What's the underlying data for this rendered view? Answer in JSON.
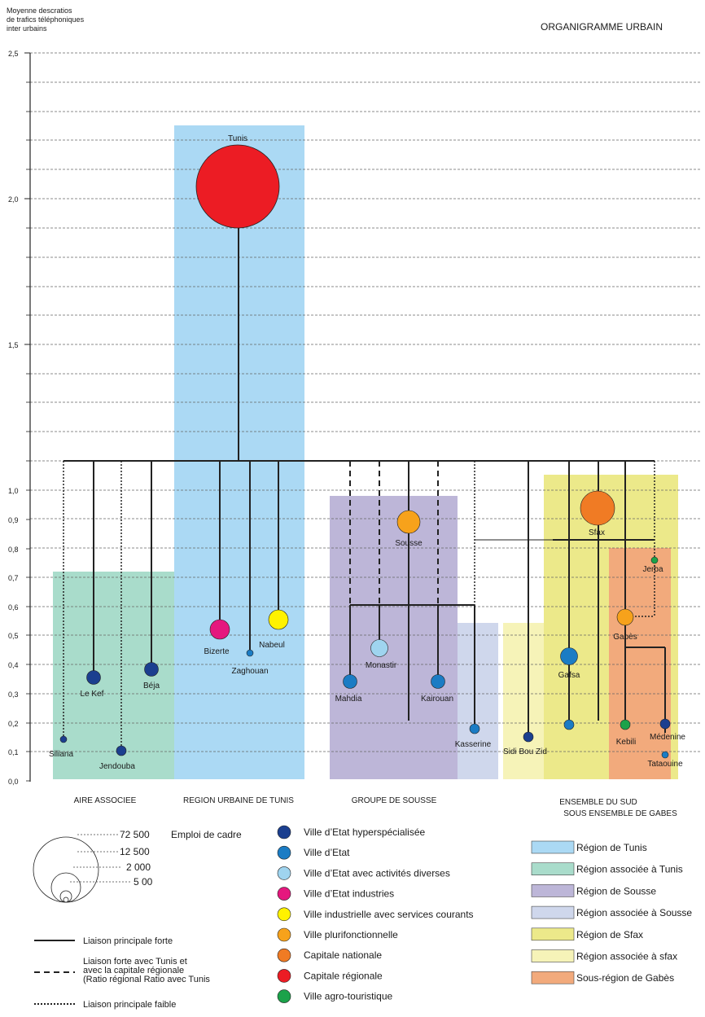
{
  "title": "ORGANIGRAMME URBAIN",
  "y_axis": {
    "label_lines": [
      "Moyenne descratios",
      "de trafics téléphoniques",
      "inter urbains"
    ],
    "ticks_major": [
      "2,5",
      "2,0",
      "1,5"
    ],
    "ticks_minor": [
      "1,0",
      "0,9",
      "0,8",
      "0,7",
      "0,6",
      "0,5",
      "0,4",
      "0,3",
      "0,2",
      "0,1",
      "0,0"
    ]
  },
  "regions": [
    {
      "key": "tunis",
      "label": "REGION URBAINE DE TUNIS",
      "color": "#abd9f4"
    },
    {
      "key": "aire",
      "label": "AIRE ASSOCIEE",
      "color": "#a9dccb"
    },
    {
      "key": "sousse",
      "label": "GROUPE DE SOUSSE",
      "color": "#bdb6d8"
    },
    {
      "key": "sousse_assoc",
      "label": "",
      "color": "#cfd7ec"
    },
    {
      "key": "sfax_assoc",
      "label": "",
      "color": "#f6f3b8"
    },
    {
      "key": "sfax",
      "label": "",
      "color": "#ece98a"
    },
    {
      "key": "gabes",
      "label": "",
      "color": "#f2aa7c"
    }
  ],
  "bottom_labels": {
    "aire": "AIRE ASSOCIEE",
    "tunis": "REGION URBAINE DE TUNIS",
    "sousse": "GROUPE DE SOUSSE",
    "sud1": "ENSEMBLE DU SUD",
    "sud2": "SOUS ENSEMBLE DE GABES"
  },
  "city_types": {
    "hyper": {
      "label": "Ville d’Etat hyperspécialisée",
      "color": "#1b3f8f"
    },
    "etat": {
      "label": "Ville d’Etat",
      "color": "#1b7cc4"
    },
    "diverses": {
      "label": "Ville d’Etat avec activités diverses",
      "color": "#9fd4ef"
    },
    "industries": {
      "label": "Ville d’Etat industries",
      "color": "#e5177e"
    },
    "industrielle": {
      "label": "Ville industrielle avec services courants",
      "color": "#fff200"
    },
    "pluri": {
      "label": "Ville plurifonctionnelle",
      "color": "#f7a21b"
    },
    "nationale": {
      "label": "Capitale nationale",
      "color": "#f07b24"
    },
    "regionale": {
      "label": "Capitale régionale",
      "color": "#ec1c24"
    },
    "agro": {
      "label": "Ville agro-touristique",
      "color": "#1ba24a"
    }
  },
  "cities": [
    {
      "name": "Tunis",
      "type": "regionale",
      "value": 2.05
    },
    {
      "name": "Siliana",
      "type": "hyper",
      "value": 0.14
    },
    {
      "name": "Le Kef",
      "type": "hyper",
      "value": 0.35
    },
    {
      "name": "Jendouba",
      "type": "hyper",
      "value": 0.1
    },
    {
      "name": "Béja",
      "type": "hyper",
      "value": 0.38
    },
    {
      "name": "Bizerte",
      "type": "industries",
      "value": 0.51
    },
    {
      "name": "Zaghouan",
      "type": "etat",
      "value": 0.43
    },
    {
      "name": "Nabeul",
      "type": "industrielle",
      "value": 0.54
    },
    {
      "name": "Sousse",
      "type": "pluri",
      "value": 0.89
    },
    {
      "name": "Monastir",
      "type": "diverses",
      "value": 0.45
    },
    {
      "name": "Mahdia",
      "type": "etat",
      "value": 0.34
    },
    {
      "name": "Kairouan",
      "type": "etat",
      "value": 0.34
    },
    {
      "name": "Kasserine",
      "type": "etat",
      "value": 0.17
    },
    {
      "name": "Sidi Bou Zid",
      "type": "hyper",
      "value": 0.14
    },
    {
      "name": "Sfax",
      "type": "nationale",
      "value": 0.93
    },
    {
      "name": "Jerba",
      "type": "agro",
      "value": 0.78
    },
    {
      "name": "Gabès",
      "type": "pluri",
      "value": 0.56
    },
    {
      "name": "Gafsa",
      "type": "etat",
      "value": 0.42
    },
    {
      "name": "Kebili",
      "type": "agro",
      "value": 0.19
    },
    {
      "name": "Médenine",
      "type": "hyper",
      "value": 0.19
    },
    {
      "name": "Tataouine",
      "type": "etat",
      "value": 0.1
    }
  ],
  "size_legend": {
    "title": "Emploi de cadre",
    "values": [
      "72 500",
      "12 500",
      "2 000",
      "5 00"
    ]
  },
  "link_legend": {
    "strong": "Liaison principale forte",
    "dashed_lines": [
      "Liaison forte avec Tunis et",
      "avec la capitale régionale",
      "(Ratio régional  Ratio avec Tunis"
    ],
    "weak": "Liaison principale faible"
  },
  "region_legend": [
    {
      "label": "Région de Tunis",
      "color": "#abd9f4"
    },
    {
      "label": "Région associée à Tunis",
      "color": "#a9dccb"
    },
    {
      "label": "Région de Sousse",
      "color": "#bdb6d8"
    },
    {
      "label": "Région associée à Sousse",
      "color": "#cfd7ec"
    },
    {
      "label": "Région de Sfax",
      "color": "#ece98a"
    },
    {
      "label": "Région associée à sfax",
      "color": "#f6f3b8"
    },
    {
      "label": "Sous-région de Gabès",
      "color": "#f2aa7c"
    }
  ]
}
